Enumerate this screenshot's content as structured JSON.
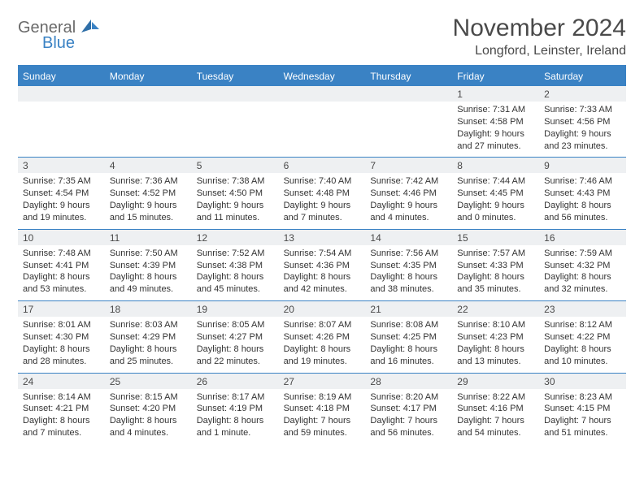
{
  "logo": {
    "general": "General",
    "blue": "Blue"
  },
  "title": "November 2024",
  "location": "Longford, Leinster, Ireland",
  "colors": {
    "accent": "#3a82c4",
    "header_text": "#ffffff",
    "daynum_bg": "#eef0f2",
    "body_text": "#333333",
    "title_text": "#4a4a4a"
  },
  "weekdays": [
    "Sunday",
    "Monday",
    "Tuesday",
    "Wednesday",
    "Thursday",
    "Friday",
    "Saturday"
  ],
  "weeks": [
    [
      {
        "n": "",
        "sr": "",
        "ss": "",
        "dl1": "",
        "dl2": ""
      },
      {
        "n": "",
        "sr": "",
        "ss": "",
        "dl1": "",
        "dl2": ""
      },
      {
        "n": "",
        "sr": "",
        "ss": "",
        "dl1": "",
        "dl2": ""
      },
      {
        "n": "",
        "sr": "",
        "ss": "",
        "dl1": "",
        "dl2": ""
      },
      {
        "n": "",
        "sr": "",
        "ss": "",
        "dl1": "",
        "dl2": ""
      },
      {
        "n": "1",
        "sr": "Sunrise: 7:31 AM",
        "ss": "Sunset: 4:58 PM",
        "dl1": "Daylight: 9 hours",
        "dl2": "and 27 minutes."
      },
      {
        "n": "2",
        "sr": "Sunrise: 7:33 AM",
        "ss": "Sunset: 4:56 PM",
        "dl1": "Daylight: 9 hours",
        "dl2": "and 23 minutes."
      }
    ],
    [
      {
        "n": "3",
        "sr": "Sunrise: 7:35 AM",
        "ss": "Sunset: 4:54 PM",
        "dl1": "Daylight: 9 hours",
        "dl2": "and 19 minutes."
      },
      {
        "n": "4",
        "sr": "Sunrise: 7:36 AM",
        "ss": "Sunset: 4:52 PM",
        "dl1": "Daylight: 9 hours",
        "dl2": "and 15 minutes."
      },
      {
        "n": "5",
        "sr": "Sunrise: 7:38 AM",
        "ss": "Sunset: 4:50 PM",
        "dl1": "Daylight: 9 hours",
        "dl2": "and 11 minutes."
      },
      {
        "n": "6",
        "sr": "Sunrise: 7:40 AM",
        "ss": "Sunset: 4:48 PM",
        "dl1": "Daylight: 9 hours",
        "dl2": "and 7 minutes."
      },
      {
        "n": "7",
        "sr": "Sunrise: 7:42 AM",
        "ss": "Sunset: 4:46 PM",
        "dl1": "Daylight: 9 hours",
        "dl2": "and 4 minutes."
      },
      {
        "n": "8",
        "sr": "Sunrise: 7:44 AM",
        "ss": "Sunset: 4:45 PM",
        "dl1": "Daylight: 9 hours",
        "dl2": "and 0 minutes."
      },
      {
        "n": "9",
        "sr": "Sunrise: 7:46 AM",
        "ss": "Sunset: 4:43 PM",
        "dl1": "Daylight: 8 hours",
        "dl2": "and 56 minutes."
      }
    ],
    [
      {
        "n": "10",
        "sr": "Sunrise: 7:48 AM",
        "ss": "Sunset: 4:41 PM",
        "dl1": "Daylight: 8 hours",
        "dl2": "and 53 minutes."
      },
      {
        "n": "11",
        "sr": "Sunrise: 7:50 AM",
        "ss": "Sunset: 4:39 PM",
        "dl1": "Daylight: 8 hours",
        "dl2": "and 49 minutes."
      },
      {
        "n": "12",
        "sr": "Sunrise: 7:52 AM",
        "ss": "Sunset: 4:38 PM",
        "dl1": "Daylight: 8 hours",
        "dl2": "and 45 minutes."
      },
      {
        "n": "13",
        "sr": "Sunrise: 7:54 AM",
        "ss": "Sunset: 4:36 PM",
        "dl1": "Daylight: 8 hours",
        "dl2": "and 42 minutes."
      },
      {
        "n": "14",
        "sr": "Sunrise: 7:56 AM",
        "ss": "Sunset: 4:35 PM",
        "dl1": "Daylight: 8 hours",
        "dl2": "and 38 minutes."
      },
      {
        "n": "15",
        "sr": "Sunrise: 7:57 AM",
        "ss": "Sunset: 4:33 PM",
        "dl1": "Daylight: 8 hours",
        "dl2": "and 35 minutes."
      },
      {
        "n": "16",
        "sr": "Sunrise: 7:59 AM",
        "ss": "Sunset: 4:32 PM",
        "dl1": "Daylight: 8 hours",
        "dl2": "and 32 minutes."
      }
    ],
    [
      {
        "n": "17",
        "sr": "Sunrise: 8:01 AM",
        "ss": "Sunset: 4:30 PM",
        "dl1": "Daylight: 8 hours",
        "dl2": "and 28 minutes."
      },
      {
        "n": "18",
        "sr": "Sunrise: 8:03 AM",
        "ss": "Sunset: 4:29 PM",
        "dl1": "Daylight: 8 hours",
        "dl2": "and 25 minutes."
      },
      {
        "n": "19",
        "sr": "Sunrise: 8:05 AM",
        "ss": "Sunset: 4:27 PM",
        "dl1": "Daylight: 8 hours",
        "dl2": "and 22 minutes."
      },
      {
        "n": "20",
        "sr": "Sunrise: 8:07 AM",
        "ss": "Sunset: 4:26 PM",
        "dl1": "Daylight: 8 hours",
        "dl2": "and 19 minutes."
      },
      {
        "n": "21",
        "sr": "Sunrise: 8:08 AM",
        "ss": "Sunset: 4:25 PM",
        "dl1": "Daylight: 8 hours",
        "dl2": "and 16 minutes."
      },
      {
        "n": "22",
        "sr": "Sunrise: 8:10 AM",
        "ss": "Sunset: 4:23 PM",
        "dl1": "Daylight: 8 hours",
        "dl2": "and 13 minutes."
      },
      {
        "n": "23",
        "sr": "Sunrise: 8:12 AM",
        "ss": "Sunset: 4:22 PM",
        "dl1": "Daylight: 8 hours",
        "dl2": "and 10 minutes."
      }
    ],
    [
      {
        "n": "24",
        "sr": "Sunrise: 8:14 AM",
        "ss": "Sunset: 4:21 PM",
        "dl1": "Daylight: 8 hours",
        "dl2": "and 7 minutes."
      },
      {
        "n": "25",
        "sr": "Sunrise: 8:15 AM",
        "ss": "Sunset: 4:20 PM",
        "dl1": "Daylight: 8 hours",
        "dl2": "and 4 minutes."
      },
      {
        "n": "26",
        "sr": "Sunrise: 8:17 AM",
        "ss": "Sunset: 4:19 PM",
        "dl1": "Daylight: 8 hours",
        "dl2": "and 1 minute."
      },
      {
        "n": "27",
        "sr": "Sunrise: 8:19 AM",
        "ss": "Sunset: 4:18 PM",
        "dl1": "Daylight: 7 hours",
        "dl2": "and 59 minutes."
      },
      {
        "n": "28",
        "sr": "Sunrise: 8:20 AM",
        "ss": "Sunset: 4:17 PM",
        "dl1": "Daylight: 7 hours",
        "dl2": "and 56 minutes."
      },
      {
        "n": "29",
        "sr": "Sunrise: 8:22 AM",
        "ss": "Sunset: 4:16 PM",
        "dl1": "Daylight: 7 hours",
        "dl2": "and 54 minutes."
      },
      {
        "n": "30",
        "sr": "Sunrise: 8:23 AM",
        "ss": "Sunset: 4:15 PM",
        "dl1": "Daylight: 7 hours",
        "dl2": "and 51 minutes."
      }
    ]
  ]
}
